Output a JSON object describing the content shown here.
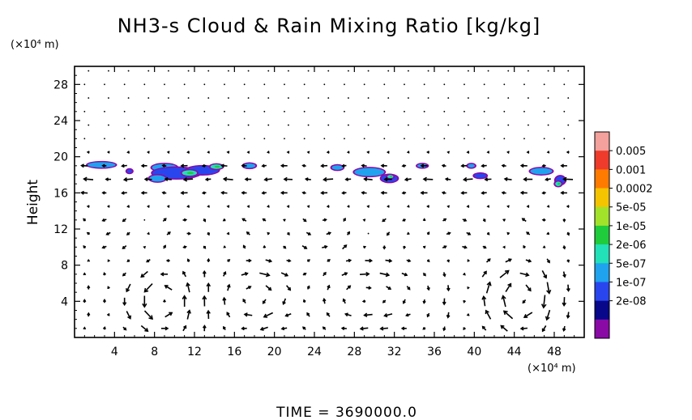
{
  "chart_data": {
    "type": "heatmap",
    "title": "NH3-s Cloud & Rain Mixing Ratio [kg/kg]",
    "ylabel": "Height",
    "y_unit_label": "(×10⁴ m)",
    "x_unit_label": "(×10⁴ m)",
    "time_label": "TIME  =  3690000.0",
    "xlim": [
      0,
      51
    ],
    "ylim": [
      0,
      30
    ],
    "x_ticks": [
      4,
      8,
      12,
      16,
      20,
      24,
      28,
      32,
      36,
      40,
      44,
      48
    ],
    "y_ticks": [
      4,
      8,
      12,
      16,
      20,
      24,
      28
    ],
    "colorbar": {
      "labels": [
        "0.005",
        "0.001",
        "0.0002",
        "5e-05",
        "1e-05",
        "2e-06",
        "5e-07",
        "1e-07",
        "2e-08"
      ],
      "colors": [
        "#f4a09c",
        "#ee3b2c",
        "#ff7b00",
        "#f4c400",
        "#a3e22b",
        "#1fcc3c",
        "#22e0b8",
        "#1fa3ee",
        "#2946ee",
        "#08088a",
        "#8a0aa6"
      ]
    },
    "cloud_cells": [
      {
        "x": 2.7,
        "y": 19.1,
        "w": 2.8,
        "h": 0.6,
        "level": 2
      },
      {
        "x": 5.5,
        "y": 18.4,
        "w": 0.5,
        "h": 0.4,
        "level": 1
      },
      {
        "x": 9.0,
        "y": 18.8,
        "w": 2.5,
        "h": 0.8,
        "level": 2
      },
      {
        "x": 10.2,
        "y": 18.2,
        "w": 4.8,
        "h": 1.2,
        "level": 1
      },
      {
        "x": 12.8,
        "y": 18.5,
        "w": 3.2,
        "h": 0.9,
        "level": 1
      },
      {
        "x": 8.3,
        "y": 17.6,
        "w": 1.6,
        "h": 0.7,
        "level": 2
      },
      {
        "x": 11.5,
        "y": 18.2,
        "w": 1.5,
        "h": 0.6,
        "level": 3
      },
      {
        "x": 14.2,
        "y": 18.9,
        "w": 1.2,
        "h": 0.5,
        "level": 3
      },
      {
        "x": 17.5,
        "y": 19.0,
        "w": 1.2,
        "h": 0.5,
        "level": 2
      },
      {
        "x": 26.3,
        "y": 18.8,
        "w": 1.1,
        "h": 0.5,
        "level": 2
      },
      {
        "x": 29.5,
        "y": 18.3,
        "w": 3.0,
        "h": 0.9,
        "level": 2
      },
      {
        "x": 31.5,
        "y": 17.6,
        "w": 1.6,
        "h": 0.8,
        "level": 1
      },
      {
        "x": 31.6,
        "y": 17.8,
        "w": 0.6,
        "h": 0.35,
        "level": 3
      },
      {
        "x": 34.8,
        "y": 19.0,
        "w": 1.0,
        "h": 0.4,
        "level": 2
      },
      {
        "x": 39.7,
        "y": 19.0,
        "w": 0.7,
        "h": 0.4,
        "level": 2
      },
      {
        "x": 40.6,
        "y": 17.9,
        "w": 1.2,
        "h": 0.5,
        "level": 1
      },
      {
        "x": 46.7,
        "y": 18.4,
        "w": 2.2,
        "h": 0.7,
        "level": 2
      },
      {
        "x": 48.6,
        "y": 17.4,
        "w": 0.9,
        "h": 0.9,
        "level": 1
      },
      {
        "x": 48.4,
        "y": 17.0,
        "w": 0.6,
        "h": 0.5,
        "level": 3
      }
    ],
    "wind": {
      "x_spacing": 2,
      "y_spacing": 1.5,
      "jet_levels": [
        15,
        16.5,
        18,
        19.5,
        21
      ],
      "eddy_centers": [
        {
          "x": 19,
          "y": 4.5,
          "rx": 4.5,
          "ry": 4.5,
          "dir": -1
        },
        {
          "x": 30,
          "y": 4.5,
          "rx": 5.5,
          "ry": 5.0,
          "dir": -1
        },
        {
          "x": 44,
          "y": 4.5,
          "rx": 4.5,
          "ry": 4.5,
          "dir": -1
        },
        {
          "x": 8,
          "y": 4.0,
          "rx": 4.0,
          "ry": 4.0,
          "dir": 1
        }
      ]
    }
  }
}
